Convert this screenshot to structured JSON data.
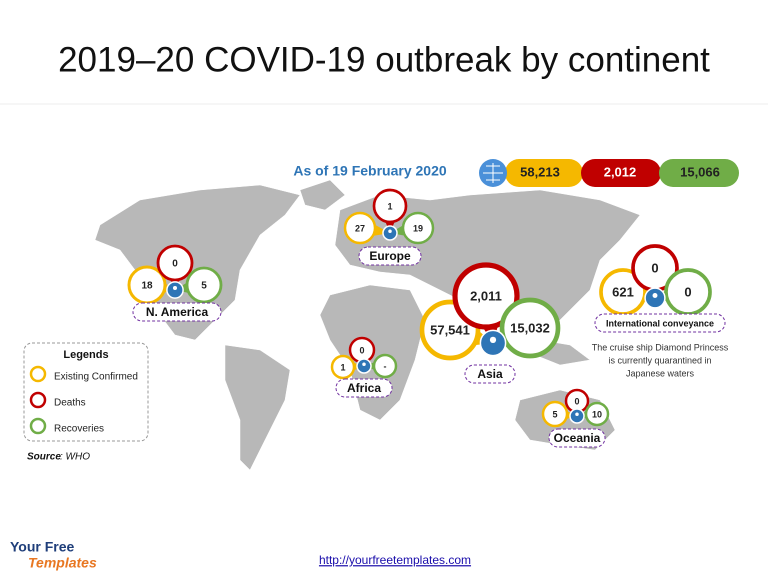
{
  "title": "2019–20 COVID-19 outbreak by continent",
  "as_of": "As of 19 February 2020",
  "totals": {
    "confirmed": "58,213",
    "deaths": "2,012",
    "recoveries": "15,066"
  },
  "regions": [
    {
      "name": "N. America",
      "confirmed": "18",
      "deaths": "0",
      "recoveries": "5"
    },
    {
      "name": "Europe",
      "confirmed": "27",
      "deaths": "1",
      "recoveries": "19"
    },
    {
      "name": "Africa",
      "confirmed": "1",
      "deaths": "0",
      "recoveries": "-"
    },
    {
      "name": "Asia",
      "confirmed": "57,541",
      "deaths": "2,011",
      "recoveries": "15,032"
    },
    {
      "name": "Oceania",
      "confirmed": "5",
      "deaths": "0",
      "recoveries": "10"
    },
    {
      "name": "International conveyance",
      "confirmed": "621",
      "deaths": "0",
      "recoveries": "0"
    }
  ],
  "note": [
    "The cruise ship Diamond Princess",
    "is currently quarantined in",
    "Japanese waters"
  ],
  "legend": {
    "title": "Legends",
    "items": [
      "Existing Confirmed",
      "Deaths",
      "Recoveries"
    ]
  },
  "source": {
    "label": "Source",
    "text": ": WHO"
  },
  "footer": {
    "url": "http://yourfreetemplates.com",
    "logo_top": "Your Free",
    "logo_bottom": "Templates"
  }
}
